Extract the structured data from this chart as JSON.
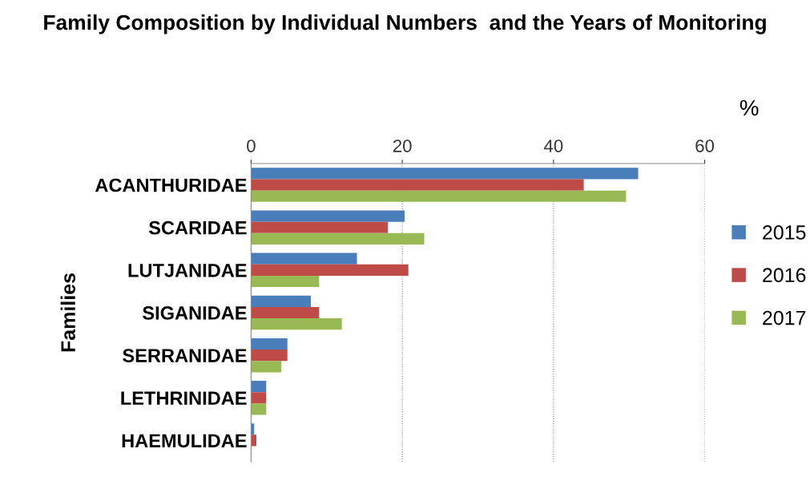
{
  "chart_data": {
    "type": "bar",
    "orientation": "horizontal",
    "title": "Family Composition by Individual Numbers  and the Years of Monitoring",
    "xlabel": "%",
    "ylabel": "Families",
    "categories": [
      "ACANTHURIDAE",
      "SCARIDAE",
      "LUTJANIDAE",
      "SIGANIDAE",
      "SERRANIDAE",
      "LETHRINIDAE",
      "HAEMULIDAE"
    ],
    "series": [
      {
        "name": "2015",
        "color": "#4a7ebb",
        "values": [
          51.2,
          20.3,
          14.0,
          7.9,
          4.8,
          2.0,
          0.4
        ]
      },
      {
        "name": "2016",
        "color": "#be4b48",
        "values": [
          44.0,
          18.1,
          20.8,
          9.0,
          4.8,
          2.0,
          0.7
        ]
      },
      {
        "name": "2017",
        "color": "#98b954",
        "values": [
          49.6,
          22.9,
          9.0,
          12.0,
          4.0,
          2.0,
          null
        ]
      }
    ],
    "xlim": [
      0,
      60
    ],
    "xticks": [
      0,
      20,
      40,
      60
    ],
    "grid": "x",
    "legend": "right"
  }
}
